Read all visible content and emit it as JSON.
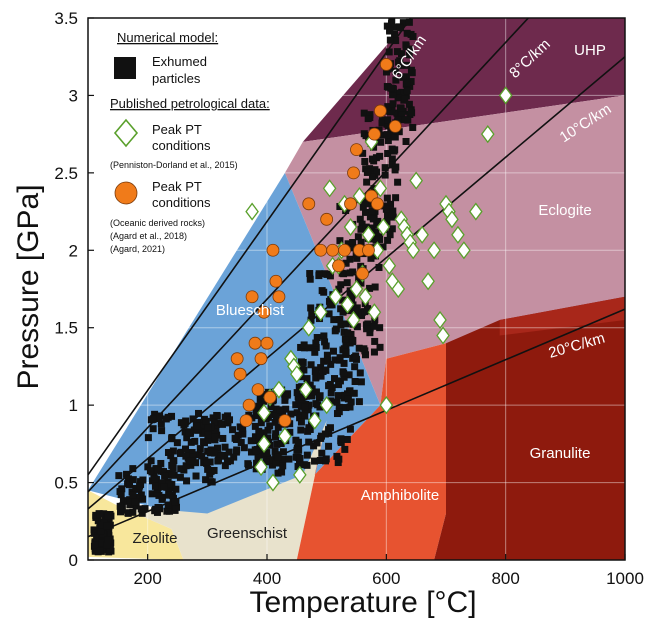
{
  "chart_data": {
    "type": "scatter",
    "xlabel": "Temperature [°C]",
    "ylabel": "Pressure [GPa]",
    "xlim": [
      100,
      1000
    ],
    "ylim": [
      0,
      3.5
    ],
    "x_ticks": [
      200,
      400,
      600,
      800,
      1000
    ],
    "y_ticks": [
      0,
      0.5,
      1,
      1.5,
      2,
      2.5,
      3,
      3.5
    ],
    "y_tick_labels": [
      "0",
      "0.5",
      "1",
      "1.5",
      "2",
      "2.5",
      "3",
      "3.5"
    ],
    "grid": true,
    "legend_position": "top-left",
    "legend": {
      "model_heading": "Numerical model:",
      "model_line1": "Exhumed",
      "model_line2": "particles",
      "petro_heading": "Published petrological data:",
      "pd_line1": "Peak PT",
      "pd_line2": "conditions",
      "pd_ref": "(Penniston-Dorland et al., 2015)",
      "ag_line1": "Peak PT",
      "ag_line2": "conditions",
      "ag_ref1": "(Oceanic derived rocks)",
      "ag_ref2": "(Agard et al., 2018)",
      "ag_ref3": "(Agard, 2021)"
    },
    "facies": [
      {
        "name": "UHP",
        "color": "#6e2a4d",
        "label": "UHP",
        "polygon": [
          [
            460,
            2.7
          ],
          [
            640,
            3.5
          ],
          [
            1000,
            3.5
          ],
          [
            1000,
            3.0
          ]
        ]
      },
      {
        "name": "Eclogite",
        "color": "#c490a2",
        "label": "Eclogite",
        "polygon": [
          [
            430,
            2.5
          ],
          [
            460,
            2.7
          ],
          [
            1000,
            3.0
          ],
          [
            1000,
            1.7
          ],
          [
            600,
            1.3
          ],
          [
            590,
            1.0
          ]
        ]
      },
      {
        "name": "Blueschist",
        "color": "#6ba3d8",
        "label": "Blueschist",
        "polygon": [
          [
            100,
            0.45
          ],
          [
            430,
            2.5
          ],
          [
            590,
            1.0
          ],
          [
            480,
            0.55
          ],
          [
            300,
            0.25
          ]
        ]
      },
      {
        "name": "Zeolite",
        "color": "#f8e79c",
        "label": "Zeolite",
        "polygon": [
          [
            100,
            0.02
          ],
          [
            100,
            0.45
          ],
          [
            150,
            0.35
          ],
          [
            240,
            0.2
          ],
          [
            260,
            0
          ]
        ]
      },
      {
        "name": "Greenschist",
        "color": "#e8e2cc",
        "label": "Greenschist",
        "polygon": [
          [
            150,
            0.35
          ],
          [
            300,
            0.3
          ],
          [
            460,
            0.55
          ],
          [
            500,
            0.9
          ],
          [
            450,
            0
          ],
          [
            260,
            0
          ],
          [
            240,
            0.2
          ]
        ]
      },
      {
        "name": "Amphibolite",
        "color": "#e75330",
        "label": "Amphibolite",
        "polygon": [
          [
            450,
            0
          ],
          [
            500,
            0.9
          ],
          [
            480,
            0.55
          ],
          [
            590,
            1.0
          ],
          [
            600,
            1.3
          ],
          [
            700,
            1.4
          ],
          [
            700,
            0.3
          ],
          [
            680,
            0
          ]
        ]
      },
      {
        "name": "Granulite",
        "color": "#8e1a0d",
        "label": "Granulite",
        "polygon": [
          [
            680,
            0
          ],
          [
            700,
            0.3
          ],
          [
            700,
            1.4
          ],
          [
            790,
            1.55
          ],
          [
            1000,
            1.7
          ],
          [
            1000,
            0
          ]
        ]
      },
      {
        "name": "Granulite-upper",
        "color": "#a8271a",
        "label": "",
        "polygon": [
          [
            790,
            1.55
          ],
          [
            1000,
            1.7
          ],
          [
            1000,
            1.55
          ],
          [
            790,
            1.45
          ]
        ]
      }
    ],
    "geotherms": [
      {
        "label": "6°C/km",
        "x": [
          100,
          650
        ],
        "y": [
          0.55,
          3.55
        ]
      },
      {
        "label": "8°C/km",
        "x": [
          100,
          850
        ],
        "y": [
          0.44,
          3.55
        ]
      },
      {
        "label": "10°C/km",
        "x": [
          100,
          1000
        ],
        "y": [
          0.33,
          3.25
        ]
      },
      {
        "label": "20°C/km",
        "x": [
          100,
          1000
        ],
        "y": [
          0.15,
          1.62
        ]
      }
    ],
    "series": [
      {
        "name": "Exhumed particles",
        "marker": "square",
        "color": "#111111",
        "clusters": [
          {
            "x": [
              110,
              140
            ],
            "y": [
              0.05,
              0.3
            ]
          },
          {
            "x": [
              150,
              250
            ],
            "y": [
              0.3,
              0.6
            ]
          },
          {
            "x": [
              200,
              320
            ],
            "y": [
              0.5,
              0.95
            ]
          },
          {
            "x": [
              260,
              420
            ],
            "y": [
              0.6,
              0.95
            ]
          },
          {
            "x": [
              380,
              470
            ],
            "y": [
              0.55,
              1.1
            ]
          },
          {
            "x": [
              450,
              540
            ],
            "y": [
              0.6,
              1.4
            ]
          },
          {
            "x": [
              470,
              560
            ],
            "y": [
              1.0,
              1.9
            ]
          },
          {
            "x": [
              520,
              590
            ],
            "y": [
              1.3,
              2.3
            ]
          },
          {
            "x": [
              560,
              620
            ],
            "y": [
              2.0,
              2.9
            ]
          },
          {
            "x": [
              600,
              645
            ],
            "y": [
              2.7,
              3.5
            ]
          }
        ]
      },
      {
        "name": "Peak PT conditions (Penniston-Dorland et al., 2015)",
        "marker": "diamond",
        "color": "#5aa02c",
        "x": [
          375,
          390,
          395,
          395,
          405,
          410,
          420,
          430,
          440,
          445,
          450,
          455,
          465,
          470,
          480,
          490,
          500,
          505,
          510,
          515,
          520,
          525,
          530,
          535,
          540,
          545,
          550,
          555,
          560,
          565,
          570,
          575,
          580,
          585,
          590,
          595,
          600,
          605,
          610,
          620,
          625,
          630,
          635,
          640,
          645,
          650,
          660,
          670,
          680,
          690,
          695,
          700,
          705,
          710,
          720,
          730,
          750,
          770,
          800
        ],
        "y": [
          2.25,
          0.6,
          0.75,
          0.95,
          1.05,
          0.5,
          1.1,
          0.8,
          1.3,
          1.25,
          1.2,
          0.55,
          1.1,
          1.5,
          0.9,
          1.6,
          1.0,
          2.4,
          1.9,
          1.7,
          1.9,
          2.0,
          2.3,
          1.65,
          2.15,
          1.55,
          1.75,
          2.35,
          1.85,
          1.7,
          2.1,
          2.7,
          1.6,
          2.0,
          2.4,
          2.15,
          1.0,
          1.9,
          1.8,
          1.75,
          2.2,
          2.15,
          2.1,
          2.05,
          2.0,
          2.45,
          2.1,
          1.8,
          2.0,
          1.55,
          1.45,
          2.3,
          2.25,
          2.2,
          2.1,
          2.0,
          2.25,
          2.75,
          3.0
        ]
      },
      {
        "name": "Peak PT conditions (Agard et al., 2018; Agard, 2021)",
        "marker": "circle",
        "color": "#f07b1a",
        "x": [
          350,
          355,
          365,
          370,
          375,
          380,
          385,
          390,
          395,
          400,
          405,
          410,
          415,
          420,
          430,
          470,
          490,
          500,
          510,
          520,
          530,
          540,
          545,
          550,
          555,
          560,
          570,
          575,
          580,
          585,
          590,
          600,
          615
        ],
        "y": [
          1.3,
          1.2,
          0.9,
          1.0,
          1.7,
          1.4,
          1.1,
          1.3,
          1.6,
          1.4,
          1.05,
          2.0,
          1.8,
          1.7,
          0.9,
          2.3,
          2.0,
          2.2,
          2.0,
          1.9,
          2.0,
          2.3,
          2.5,
          2.65,
          2.0,
          1.85,
          2.0,
          2.35,
          2.75,
          2.3,
          2.9,
          3.2,
          2.8
        ]
      }
    ]
  }
}
